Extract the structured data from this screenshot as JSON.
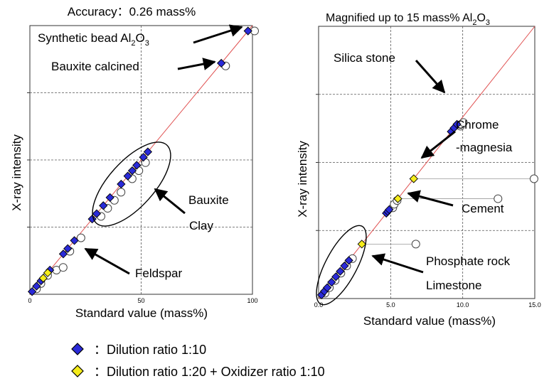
{
  "chart_data": [
    {
      "type": "scatter",
      "title": "Accuracy：0.26 mass%",
      "xlabel": "Standard value (mass%)",
      "ylabel": "X-ray intensity",
      "xlim": [
        0,
        100
      ],
      "x_ticks": [
        "0",
        "50",
        "100"
      ],
      "grid": true,
      "diagonal_line_color": "#e05050",
      "series": [
        {
          "key": "d10",
          "x": [
            1,
            3,
            5,
            9,
            15,
            17,
            20,
            28,
            30,
            33,
            36,
            41,
            44,
            46,
            48,
            51,
            53,
            86,
            98
          ],
          "y": [
            1,
            3,
            5,
            9,
            15,
            17,
            20,
            28,
            30,
            33,
            36,
            41,
            44,
            46,
            48,
            51,
            53,
            86,
            98
          ]
        },
        {
          "key": "d20",
          "x": [
            6,
            8
          ],
          "y": [
            6,
            8
          ]
        },
        {
          "key": "open",
          "x": [
            2,
            4,
            7,
            11,
            14,
            17,
            22,
            31,
            34,
            37,
            40,
            45,
            48,
            51,
            87,
            100
          ],
          "y": [
            2,
            4,
            7,
            9,
            10,
            16,
            21,
            29,
            32,
            35,
            38,
            43,
            46,
            49,
            85,
            98
          ]
        }
      ],
      "annotations": [
        {
          "text": "Synthetic bead Al",
          "sub": "2",
          "text2": "O",
          "sub2": "3"
        },
        {
          "text": "Bauxite calcined"
        },
        {
          "text": "Bauxite"
        },
        {
          "text": "Clay"
        },
        {
          "text": "Feldspar"
        }
      ]
    },
    {
      "type": "scatter",
      "title": "Magnified up to 15 mass% Al",
      "title_sub": "2",
      "title_tail": "O",
      "title_sub2": "3",
      "xlabel": "Standard value (mass%)",
      "ylabel": "X-ray intensity",
      "xlim": [
        0,
        15
      ],
      "x_ticks": [
        "0.0",
        "5.0",
        "10.0",
        "15.0"
      ],
      "grid": true,
      "diagonal_line_color": "#e05050",
      "series": [
        {
          "key": "d10",
          "x": [
            0.2,
            0.4,
            0.6,
            0.9,
            1.2,
            1.5,
            1.8,
            2.1,
            4.7,
            4.8,
            4.9,
            9.2,
            9.4,
            9.6
          ],
          "y": [
            0.2,
            0.4,
            0.6,
            0.9,
            1.2,
            1.5,
            1.8,
            2.1,
            4.7,
            4.8,
            4.9,
            9.2,
            9.4,
            9.6
          ]
        },
        {
          "key": "d20",
          "x": [
            3.0,
            5.5,
            6.6
          ],
          "y": [
            3.0,
            5.5,
            6.6
          ]
        },
        {
          "key": "open",
          "x": [
            0.3,
            0.6,
            1.0,
            1.4,
            1.8,
            2.2,
            5.0,
            5.1,
            5.3,
            6.6,
            9.7,
            9.9,
            12.3,
            14.8
          ],
          "y": [
            0.3,
            0.6,
            1.0,
            1.4,
            1.8,
            2.2,
            5.0,
            5.2,
            5.4,
            3.0,
            9.5,
            9.7,
            5.5,
            6.6
          ]
        }
      ],
      "annotations": [
        {
          "text": "Silica stone"
        },
        {
          "text": "Chrome"
        },
        {
          "text": "-magnesia"
        },
        {
          "text": "Cement"
        },
        {
          "text": "Phosphate rock"
        },
        {
          "text": "Limestone"
        }
      ]
    }
  ],
  "legend": [
    {
      "label": "：Dilution ratio 1:10",
      "color": "#2a2ad8",
      "marker": "diamond"
    },
    {
      "label": "：Dilution ratio 1:20 + Oxidizer ratio 1:10",
      "color": "#f5ec1a",
      "marker": "diamond"
    }
  ]
}
